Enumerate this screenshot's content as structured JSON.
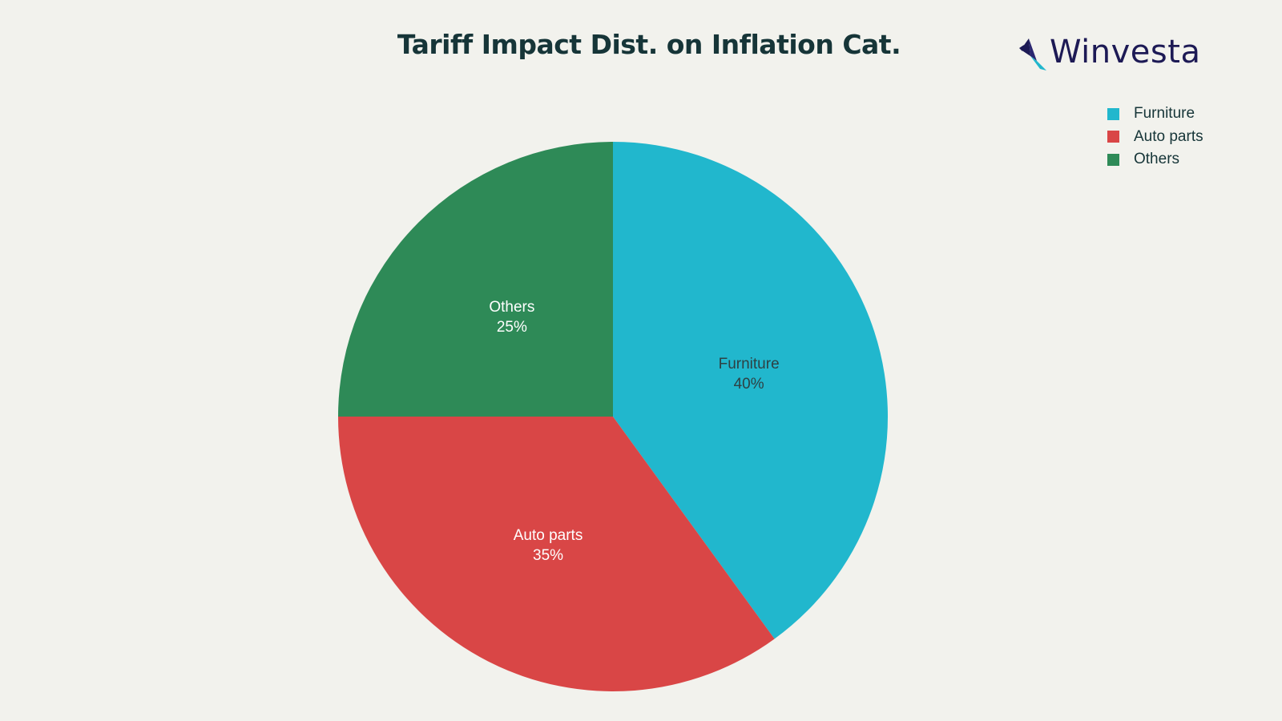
{
  "chart_data": {
    "type": "pie",
    "title": "Tariff Impact Dist. on Inflation Cat.",
    "categories": [
      "Furniture",
      "Auto parts",
      "Others"
    ],
    "values": [
      40,
      35,
      25
    ],
    "colors": [
      "#21b7cd",
      "#d94646",
      "#2e8a57"
    ],
    "label_colors": [
      "#2e4144",
      "#ffffff",
      "#ffffff"
    ],
    "value_labels": [
      "40%",
      "35%",
      "25%"
    ],
    "legend_position": "top-right",
    "start_angle": "12 o'clock, clockwise"
  },
  "logo": {
    "text": "Winvesta",
    "icon": "origami-bird-logo-icon"
  }
}
